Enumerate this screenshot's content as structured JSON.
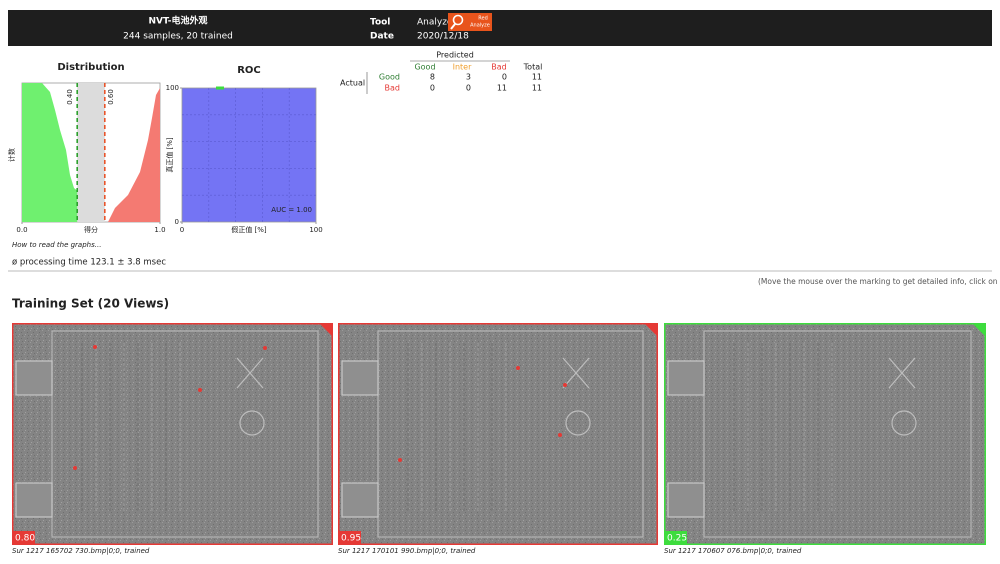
{
  "header": {
    "title": "NVT-电池外观",
    "subtitle": "244 samples, 20 trained",
    "tool_label": "Tool",
    "tool_value": "Analyze",
    "icon_text": [
      "Red",
      "Analyze"
    ],
    "date_label": "Date",
    "date_value": "2020/12/18"
  },
  "distribution": {
    "title": "Distribution",
    "x_label": "得分",
    "y_label": "计数",
    "xlim": [
      0,
      1
    ],
    "xticks": [
      {
        "value": 0,
        "label": "0.0"
      },
      {
        "value": 1,
        "label": "1.0"
      }
    ],
    "thresholds": [
      {
        "value": 0.4,
        "label": "0.40",
        "color": "#2ca02c"
      },
      {
        "value": 0.6,
        "label": "0.60",
        "color": "#e8542a"
      }
    ]
  },
  "roc": {
    "title": "ROC",
    "x_label": "假正值 [%]",
    "y_label": "真正值 [%]",
    "xlim": [
      0,
      100
    ],
    "ylim": [
      0,
      100
    ],
    "xticks": [
      0,
      100
    ],
    "yticks": [
      0,
      100
    ],
    "annotation": "AUC = 1.00"
  },
  "confusion": {
    "predicted_label": "Predicted",
    "actual_label": "Actual",
    "columns": [
      {
        "label": "Good",
        "color": "#2e7d32"
      },
      {
        "label": "Inter",
        "color": "#f0a030"
      },
      {
        "label": "Bad",
        "color": "#e53935"
      },
      {
        "label": "Total",
        "color": "#222222"
      }
    ],
    "rows": [
      {
        "label": "Good",
        "color": "#2e7d32",
        "cells": [
          8,
          3,
          0,
          11
        ]
      },
      {
        "label": "Bad",
        "color": "#e53935",
        "cells": [
          0,
          0,
          11,
          11
        ]
      }
    ]
  },
  "how_to": "How to read the graphs...",
  "processing_time": "ø processing time 123.1 ± 3.8 msec",
  "hint": "(Move the mouse over the marking to get detailed info, click on the",
  "training": {
    "title": "Training Set (20 Views)",
    "views": [
      {
        "score": "0.80",
        "caption": "Sur 1217 165702 730.bmp|0;0, trained",
        "color": "#e53935"
      },
      {
        "score": "0.95",
        "caption": "Sur 1217 170101 990.bmp|0;0, trained",
        "color": "#e53935"
      },
      {
        "score": "0.25",
        "caption": "Sur 1217 170607 076.bmp|0;0, trained",
        "color": "#3ddc3d"
      }
    ]
  }
}
